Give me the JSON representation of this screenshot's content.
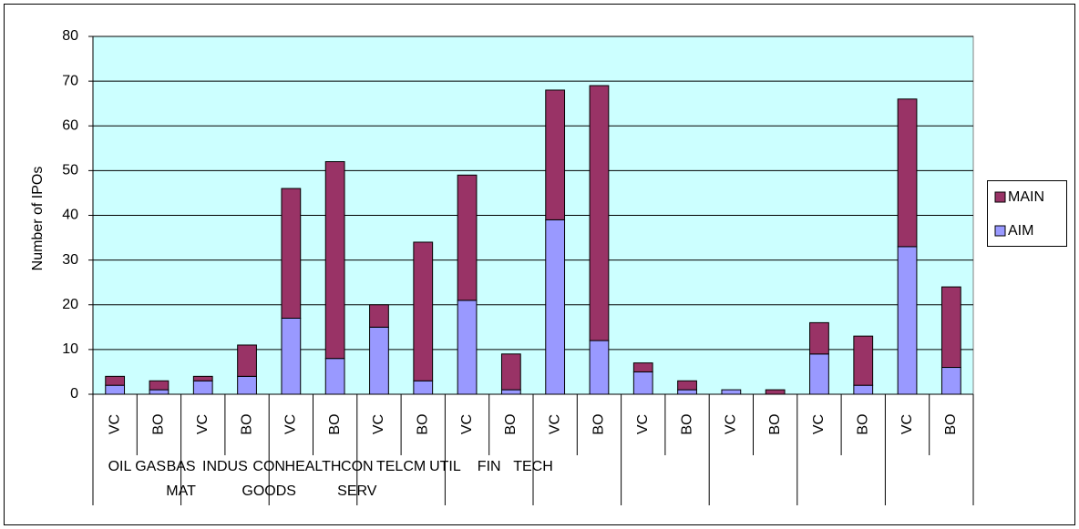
{
  "chart_data": {
    "type": "stacked_bar",
    "y_label": "Number of IPOs",
    "categories": [
      "VC",
      "BO",
      "VC",
      "BO",
      "VC",
      "BO",
      "VC",
      "BO",
      "VC",
      "BO",
      "VC",
      "BO",
      "VC",
      "BO",
      "VC",
      "BO",
      "VC",
      "BO",
      "VC",
      "BO"
    ],
    "groups": [
      [
        "OIL GAS"
      ],
      [
        "BAS",
        "MAT"
      ],
      [
        "INDUS"
      ],
      [
        "CON",
        "GOODS"
      ],
      [
        "HEALTH"
      ],
      [
        "CON",
        "SERV"
      ],
      [
        "TELCM"
      ],
      [
        "UTIL"
      ],
      [
        "FIN"
      ],
      [
        "TECH"
      ]
    ],
    "series": [
      {
        "name": "AIM",
        "color": "#9999ff",
        "values": [
          2,
          1,
          3,
          4,
          17,
          8,
          15,
          3,
          21,
          1,
          39,
          12,
          5,
          1,
          1,
          0,
          9,
          2,
          33,
          6
        ]
      },
      {
        "name": "MAIN",
        "color": "#993366",
        "values": [
          2,
          2,
          1,
          7,
          29,
          44,
          5,
          31,
          28,
          8,
          29,
          57,
          2,
          2,
          0,
          1,
          7,
          11,
          33,
          18
        ]
      }
    ],
    "ylim": [
      0,
      80
    ],
    "yticks": [
      0,
      10,
      20,
      30,
      40,
      50,
      60,
      70,
      80
    ],
    "plot_background": "#ccffff",
    "legend": "right"
  }
}
